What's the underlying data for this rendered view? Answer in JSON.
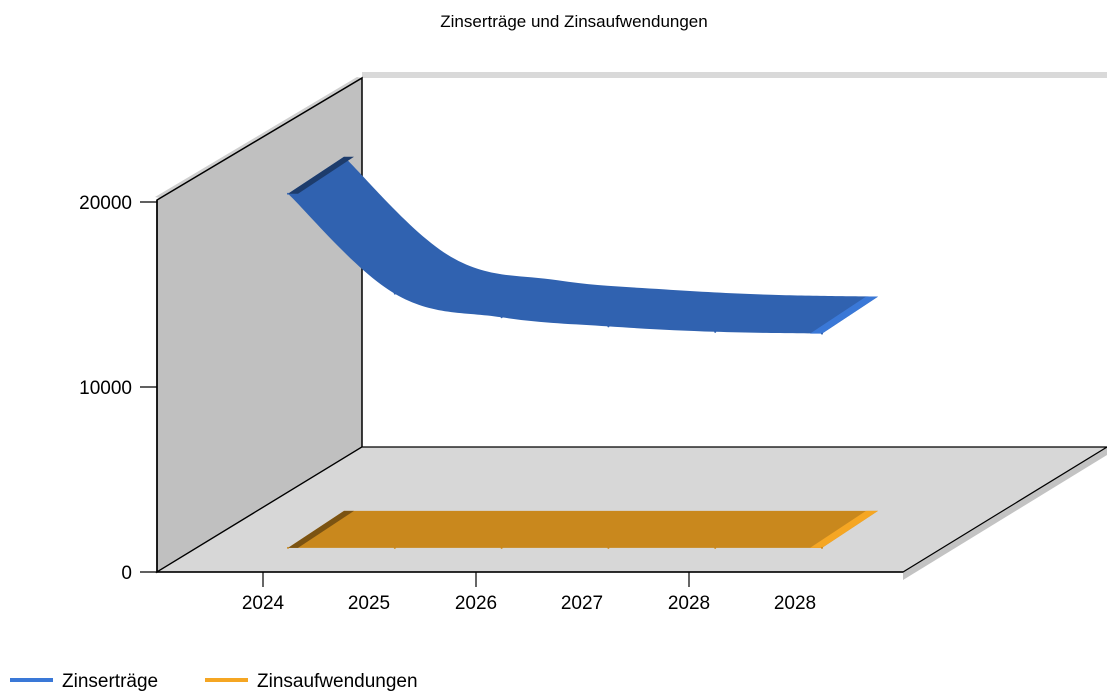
{
  "chart_data": {
    "type": "area",
    "title": "Zinserträge und Zinsaufwendungen",
    "xlabel": "",
    "ylabel": "",
    "categories": [
      "2024",
      "2025",
      "2026",
      "2027",
      "2028",
      "2028"
    ],
    "y_ticks": [
      "0",
      "10000",
      "20000"
    ],
    "ylim": [
      0,
      20000
    ],
    "three_d": true,
    "grid": false,
    "legend_position": "bottom-left",
    "series": [
      {
        "name": "Zinserträge",
        "color": "#3A78D7",
        "values": [
          20000,
          14500,
          13200,
          12700,
          12400,
          12300
        ]
      },
      {
        "name": "Zinsaufwendungen",
        "color": "#F5A623",
        "values": [
          500,
          500,
          500,
          500,
          500,
          500
        ]
      }
    ]
  }
}
